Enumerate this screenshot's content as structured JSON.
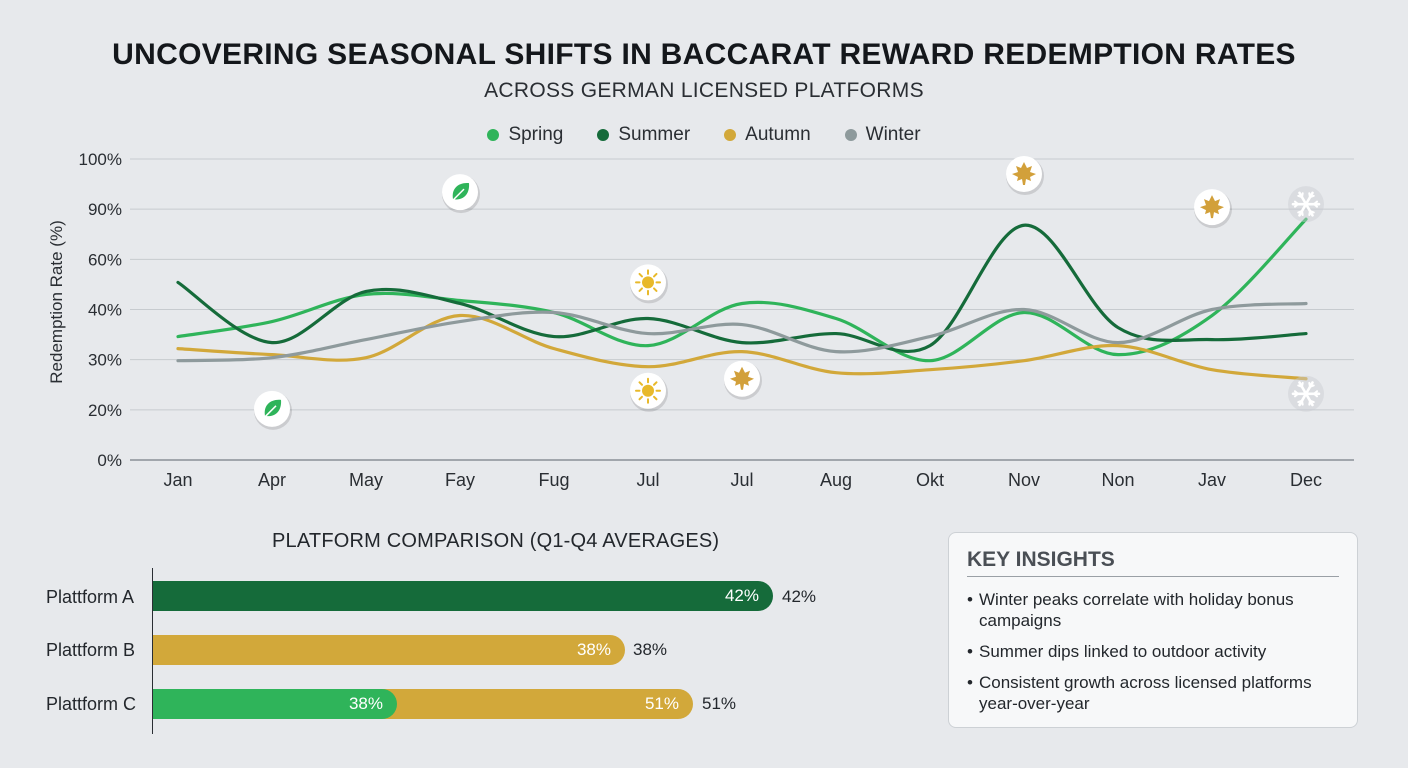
{
  "header": {
    "title": "UNCOVERING SEASONAL SHIFTS IN BACCARAT REWARD REDEMPTION RATES",
    "subtitle": "ACROSS GERMAN LICENSED PLATFORMS"
  },
  "colors": {
    "spring": "#2fb45a",
    "summer": "#156b3a",
    "autumn": "#d2a83a",
    "winter": "#8e9a9c",
    "grid": "#c7cbcf",
    "background": "#e7e9ec"
  },
  "chart_data": [
    {
      "type": "line",
      "title": "",
      "xlabel": "",
      "ylabel": "Redemption Rate (%)",
      "categories": [
        "Jan",
        "Apr",
        "May",
        "Fay",
        "Fug",
        "Jul",
        "Jul",
        "Aug",
        "Okt",
        "Nov",
        "Non",
        "Jav",
        "Dec"
      ],
      "y_ticks": [
        "0%",
        "20%",
        "30%",
        "40%",
        "60%",
        "90%",
        "100%"
      ],
      "grid": true,
      "legend_position": "top-center",
      "series": [
        {
          "name": "Spring",
          "color": "#2fb45a",
          "values": [
            41,
            46,
            55,
            53,
            49,
            38,
            52,
            47,
            33,
            49,
            35,
            48,
            80
          ]
        },
        {
          "name": "Summer",
          "color": "#156b3a",
          "values": [
            59,
            39,
            56,
            52,
            41,
            47,
            39,
            42,
            38,
            78,
            44,
            40,
            42
          ]
        },
        {
          "name": "Autumn",
          "color": "#d2a83a",
          "values": [
            37,
            35,
            34,
            48,
            37,
            31,
            36,
            29,
            30,
            33,
            38,
            30,
            27
          ]
        },
        {
          "name": "Winter",
          "color": "#8e9a9c",
          "values": [
            33,
            34,
            40,
            46,
            49,
            42,
            45,
            36,
            41,
            50,
            39,
            50,
            52
          ]
        }
      ],
      "markers": [
        {
          "icon": "leaf-icon",
          "category_index": 1,
          "value": 17
        },
        {
          "icon": "leaf-icon",
          "category_index": 3,
          "value": 89
        },
        {
          "icon": "sun-icon",
          "category_index": 5,
          "value": 59
        },
        {
          "icon": "sun-icon",
          "category_index": 5,
          "value": 23
        },
        {
          "icon": "maple-leaf-icon",
          "category_index": 6,
          "value": 27
        },
        {
          "icon": "maple-leaf-icon",
          "category_index": 9,
          "value": 95
        },
        {
          "icon": "maple-leaf-icon",
          "category_index": 11,
          "value": 84
        },
        {
          "icon": "snowflake-icon",
          "category_index": 12,
          "value": 85
        },
        {
          "icon": "snowflake-icon",
          "category_index": 12,
          "value": 22
        }
      ]
    },
    {
      "type": "bar",
      "orientation": "horizontal",
      "title": "PLATFORM COMPARISON (Q1-Q4 AVERAGES)",
      "categories": [
        "Plattform A",
        "Plattform B",
        "Plattform C"
      ],
      "series": [
        {
          "name": "",
          "color": "#156b3a",
          "values": [
            42,
            null,
            null
          ],
          "labels": [
            "42%",
            "",
            ""
          ]
        },
        {
          "name": "",
          "color": "#d2a83a",
          "values": [
            null,
            38,
            51
          ],
          "labels": [
            "",
            "38%",
            "51%"
          ]
        },
        {
          "name": "",
          "color": "#2fb45a",
          "values": [
            null,
            null,
            38
          ],
          "labels": [
            "",
            "",
            "38%"
          ]
        }
      ],
      "value_labels": [
        "42%",
        "38%",
        "51%"
      ]
    }
  ],
  "bars": {
    "title": "PLATFORM COMPARISON (Q1-Q4 AVERAGES)",
    "rows": [
      {
        "label": "Plattform A",
        "inner_label": "42%",
        "value_label": "42%"
      },
      {
        "label": "Plattform B",
        "inner_label": "38%",
        "value_label": "38%"
      },
      {
        "label": "Plattform C",
        "inner_label_green": "38%",
        "inner_label": "51%",
        "value_label": "51%"
      }
    ]
  },
  "insights": {
    "title": "KEY INSIGHTS",
    "items": [
      "Winter peaks correlate with holiday bonus campaigns",
      "Summer dips linked to outdoor activity",
      "Consistent growth across licensed platforms year-over-year"
    ]
  }
}
